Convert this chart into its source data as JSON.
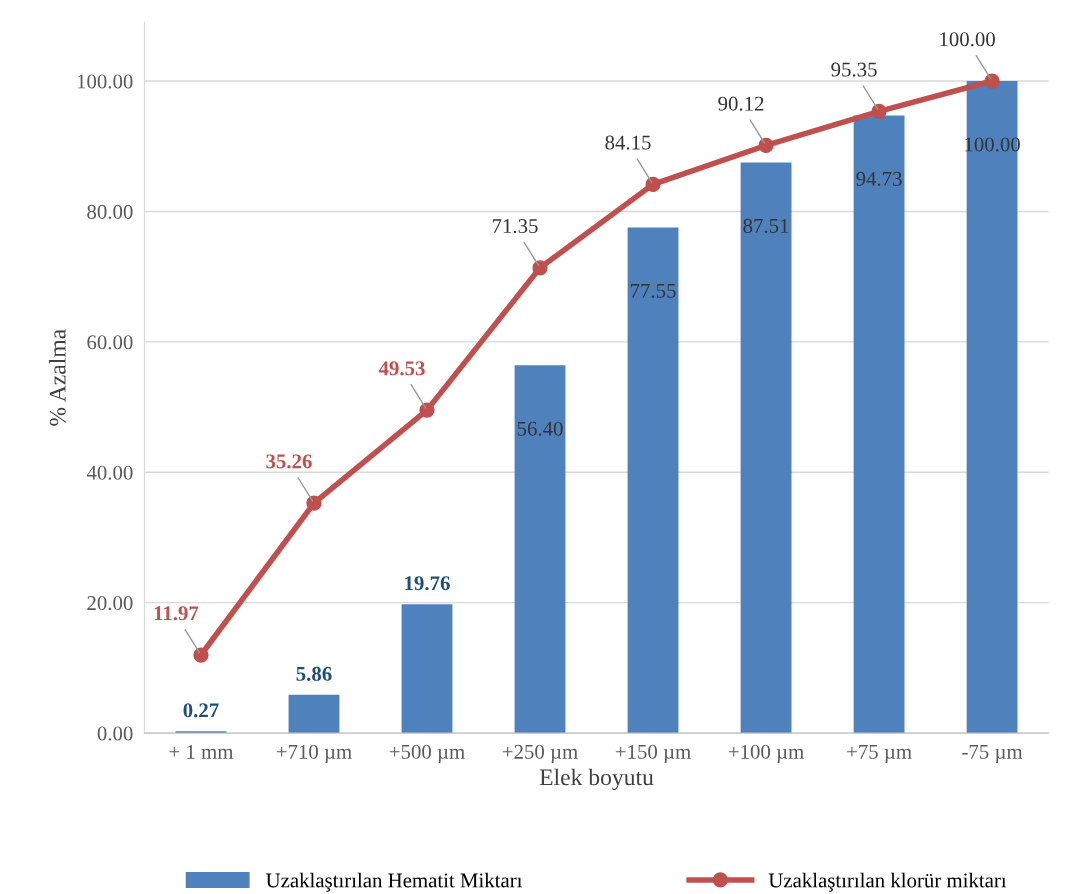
{
  "chart_data": {
    "type": "bar",
    "xlabel": "Elek boyutu",
    "ylabel": "% Azalma",
    "categories": [
      "+ 1 mm",
      "+710 µm",
      "+500 µm",
      "+250 µm",
      "+150 µm",
      "+100 µm",
      "+75 µm",
      "-75 µm"
    ],
    "series": [
      {
        "name": "Uzaklaştırılan Hematit Miktarı",
        "color": "#4f81bd",
        "values": [
          0.27,
          5.86,
          19.76,
          56.4,
          77.55,
          87.51,
          94.73,
          100.0
        ],
        "value_labels": [
          "0.27",
          "5.86",
          "19.76",
          "56.40",
          "77.55",
          "87.51",
          "94.73",
          "100.00"
        ]
      },
      {
        "name": "Uzaklaştırılan klorür miktarı",
        "type": "line",
        "color": "#c0504d",
        "marker": "circle",
        "values": [
          11.97,
          35.26,
          49.53,
          71.35,
          84.15,
          90.12,
          95.35,
          100.0
        ],
        "value_labels": [
          "11.97",
          "35.26",
          "49.53",
          "71.35",
          "84.15",
          "90.12",
          "95.35",
          "100.00"
        ]
      }
    ],
    "ylim": [
      0,
      109
    ],
    "yticks": [
      {
        "value": 0,
        "label": "0.00"
      },
      {
        "value": 20,
        "label": "20.00"
      },
      {
        "value": 40,
        "label": "40.00"
      },
      {
        "value": 60,
        "label": "60.00"
      },
      {
        "value": 80,
        "label": "80.00"
      },
      {
        "value": 100,
        "label": "100.00"
      }
    ],
    "grid": "y",
    "legend": "bottom"
  }
}
